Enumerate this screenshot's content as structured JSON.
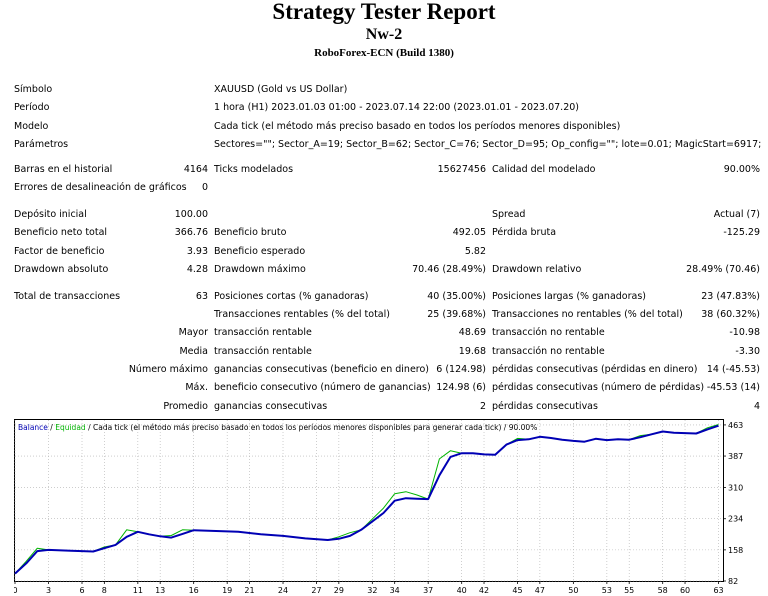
{
  "header": {
    "title": "Strategy Tester Report",
    "subtitle": "Nw-2",
    "server": "RoboForex-ECN (Build 1380)"
  },
  "settings": {
    "symbol_label": "Símbolo",
    "symbol_value": "XAUUSD (Gold vs US Dollar)",
    "period_label": "Período",
    "period_value": "1 hora (H1) 2023.01.03 01:00 - 2023.07.14 22:00 (2023.01.01 - 2023.07.20)",
    "model_label": "Modelo",
    "model_value": "Cada tick (el método más preciso basado en todos los períodos menores disponibles)",
    "params_label": "Parámetros",
    "params_value": "Sectores=\"\"; Sector_A=19; Sector_B=62; Sector_C=76; Sector_D=95; Op_config=\"\"; lote=0.01; MagicStart=6917;"
  },
  "stats": {
    "bars_label": "Barras en el historial",
    "bars_value": "4164",
    "ticks_label": "Ticks modelados",
    "ticks_value": "15627456",
    "quality_label": "Calidad del modelado",
    "quality_value": "90.00%",
    "errors_label": "Errores de desalineación de gráficos",
    "errors_value": "0",
    "deposit_label": "Depósito inicial",
    "deposit_value": "100.00",
    "spread_label": "Spread",
    "spread_value": "Actual (7)",
    "net_label": "Beneficio neto total",
    "net_value": "366.76",
    "gross_profit_label": "Beneficio bruto",
    "gross_profit_value": "492.05",
    "gross_loss_label": "Pérdida bruta",
    "gross_loss_value": "-125.29",
    "pf_label": "Factor de beneficio",
    "pf_value": "3.93",
    "expected_label": "Beneficio esperado",
    "expected_value": "5.82",
    "dd_abs_label": "Drawdown absoluto",
    "dd_abs_value": "4.28",
    "dd_max_label": "Drawdown máximo",
    "dd_max_value": "70.46 (28.49%)",
    "dd_rel_label": "Drawdown relativo",
    "dd_rel_value": "28.49% (70.46)",
    "trades_label": "Total de transacciones",
    "trades_value": "63",
    "short_label": "Posiciones cortas (% ganadoras)",
    "short_value": "40 (35.00%)",
    "long_label": "Posiciones largas (% ganadoras)",
    "long_value": "23 (47.83%)",
    "profit_trades_label": "Transacciones rentables (% del total)",
    "profit_trades_value": "25 (39.68%)",
    "loss_trades_label": "Transacciones no rentables (% del total)",
    "loss_trades_value": "38 (60.32%)",
    "largest_label": "Mayor",
    "largest_profit_label": "transacción rentable",
    "largest_profit_value": "48.69",
    "largest_loss_label": "transacción no rentable",
    "largest_loss_value": "-10.98",
    "average_label": "Media",
    "average_profit_label": "transacción rentable",
    "average_profit_value": "19.68",
    "average_loss_label": "transacción no rentable",
    "average_loss_value": "-3.30",
    "max_label": "Número máximo",
    "max_wins_label": "ganancias consecutivas (beneficio en dinero)",
    "max_wins_value": "6 (124.98)",
    "max_losses_label": "pérdidas consecutivas (pérdidas en dinero)",
    "max_losses_value": "14 (-45.53)",
    "maximal_label": "Máx.",
    "maximal_profit_label": "beneficio consecutivo (número de ganancias)",
    "maximal_profit_value": "124.98 (6)",
    "maximal_loss_label": "pérdidas consecutivas (número de pérdidas)",
    "maximal_loss_value": "-45.53 (14)",
    "avg_cons_label": "Promedio",
    "avg_wins_label": "ganancias consecutivas",
    "avg_wins_value": "2",
    "avg_losses_label": "pérdidas consecutivas",
    "avg_losses_value": "4"
  },
  "chart_data": {
    "type": "line",
    "legend": {
      "balance": "Balance",
      "sep1": " / ",
      "equity": "Equidad",
      "sep2": " / ",
      "model": "Cada tick (el método más preciso basado en todos los períodos menores disponibles para generar cada tick)",
      "sep3": " / ",
      "quality": "90.00%"
    },
    "colors": {
      "balance": "#0000b4",
      "equity": "#00b400",
      "grid": "#b0b0b0",
      "frame": "#000000"
    },
    "x_ticks": [
      0,
      3,
      6,
      8,
      11,
      13,
      16,
      19,
      21,
      24,
      27,
      29,
      32,
      34,
      37,
      40,
      42,
      45,
      47,
      50,
      53,
      55,
      58,
      60,
      63
    ],
    "y_ticks": [
      82,
      158,
      234,
      310,
      387,
      463
    ],
    "x_range": [
      0,
      63.4
    ],
    "y_range": [
      82,
      475
    ],
    "series": [
      {
        "name": "Balance",
        "points": [
          [
            0,
            100
          ],
          [
            1,
            125
          ],
          [
            2,
            155
          ],
          [
            3,
            158
          ],
          [
            5,
            156
          ],
          [
            7,
            154
          ],
          [
            8,
            162
          ],
          [
            9,
            170
          ],
          [
            10,
            190
          ],
          [
            11,
            202
          ],
          [
            12,
            196
          ],
          [
            13,
            191
          ],
          [
            14,
            188
          ],
          [
            15,
            197
          ],
          [
            16,
            206
          ],
          [
            18,
            204
          ],
          [
            20,
            202
          ],
          [
            22,
            196
          ],
          [
            24,
            192
          ],
          [
            26,
            186
          ],
          [
            28,
            182
          ],
          [
            29,
            185
          ],
          [
            30,
            192
          ],
          [
            31,
            207
          ],
          [
            33,
            248
          ],
          [
            34,
            278
          ],
          [
            35,
            284
          ],
          [
            36,
            283
          ],
          [
            37,
            282
          ],
          [
            38,
            340
          ],
          [
            39,
            385
          ],
          [
            40,
            394
          ],
          [
            41,
            394
          ],
          [
            42,
            391
          ],
          [
            43,
            390
          ],
          [
            44,
            415
          ],
          [
            45,
            426
          ],
          [
            46,
            428
          ],
          [
            47,
            434
          ],
          [
            48,
            431
          ],
          [
            49,
            427
          ],
          [
            50,
            424
          ],
          [
            51,
            422
          ],
          [
            52,
            429
          ],
          [
            53,
            426
          ],
          [
            54,
            428
          ],
          [
            55,
            427
          ],
          [
            56,
            433
          ],
          [
            57,
            440
          ],
          [
            58,
            447
          ],
          [
            59,
            444
          ],
          [
            60,
            443
          ],
          [
            61,
            442
          ],
          [
            62,
            452
          ],
          [
            63,
            461
          ]
        ]
      },
      {
        "name": "Equidad",
        "points": [
          [
            0,
            100
          ],
          [
            1,
            130
          ],
          [
            2,
            162
          ],
          [
            3,
            158
          ],
          [
            5,
            156
          ],
          [
            7,
            154
          ],
          [
            8,
            165
          ],
          [
            9,
            170
          ],
          [
            10,
            207
          ],
          [
            11,
            202
          ],
          [
            12,
            196
          ],
          [
            13,
            191
          ],
          [
            14,
            193
          ],
          [
            15,
            207
          ],
          [
            16,
            206
          ],
          [
            18,
            204
          ],
          [
            20,
            202
          ],
          [
            22,
            196
          ],
          [
            24,
            192
          ],
          [
            26,
            186
          ],
          [
            28,
            182
          ],
          [
            29,
            190
          ],
          [
            30,
            200
          ],
          [
            31,
            207
          ],
          [
            33,
            260
          ],
          [
            34,
            295
          ],
          [
            35,
            300
          ],
          [
            36,
            292
          ],
          [
            37,
            282
          ],
          [
            38,
            380
          ],
          [
            39,
            400
          ],
          [
            40,
            394
          ],
          [
            41,
            394
          ],
          [
            42,
            391
          ],
          [
            43,
            390
          ],
          [
            44,
            415
          ],
          [
            45,
            430
          ],
          [
            46,
            428
          ],
          [
            47,
            434
          ],
          [
            48,
            431
          ],
          [
            49,
            427
          ],
          [
            50,
            424
          ],
          [
            51,
            422
          ],
          [
            52,
            429
          ],
          [
            53,
            426
          ],
          [
            54,
            428
          ],
          [
            55,
            427
          ],
          [
            56,
            437
          ],
          [
            57,
            440
          ],
          [
            58,
            447
          ],
          [
            59,
            444
          ],
          [
            60,
            443
          ],
          [
            61,
            442
          ],
          [
            62,
            456
          ],
          [
            63,
            464
          ]
        ]
      }
    ]
  }
}
